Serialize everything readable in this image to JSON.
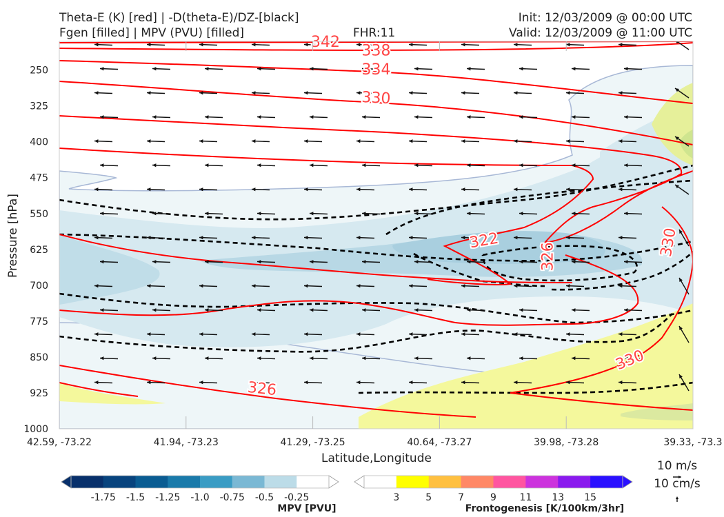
{
  "header": {
    "title_line1": "Theta-E (K) [red] | -D(theta-E)/DZ-[black]",
    "title_line2": "Fgen [filled] | MPV (PVU) [filled]",
    "fhr": "FHR:11",
    "init": "Init: 12/03/2009 @ 00:00 UTC",
    "valid": "Valid: 12/03/2009 @ 11:00 UTC"
  },
  "chart_data": {
    "type": "cross-section",
    "xlabel": "Latitude,Longitude",
    "ylabel": "Pressure [hPa]",
    "x_ticks": [
      "42.59, -73.22",
      "41.94, -73.23",
      "41.29, -73.25",
      "40.64, -73.27",
      "39.98, -73.28",
      "39.33, -73.3"
    ],
    "y_ticks": [
      250,
      325,
      400,
      475,
      550,
      625,
      700,
      775,
      850,
      925,
      1000
    ],
    "ylim": [
      1000,
      190
    ],
    "y_inverted": true,
    "grid": true,
    "theta_e_contour_labels": [
      {
        "value": "342",
        "pressure": 190,
        "position": 0.42
      },
      {
        "value": "338",
        "pressure": 208,
        "position": 0.5
      },
      {
        "value": "334",
        "pressure": 248,
        "position": 0.5
      },
      {
        "value": "330",
        "pressure": 307,
        "position": 0.5
      },
      {
        "value": "322",
        "pressure": 605,
        "position": 0.67
      },
      {
        "value": "326",
        "pressure": 640,
        "position": 0.77
      },
      {
        "value": "330",
        "pressure": 610,
        "position": 0.96
      },
      {
        "value": "330",
        "pressure": 855,
        "position": 0.9
      },
      {
        "value": "326",
        "pressure": 915,
        "position": 0.32
      }
    ],
    "wind_key": {
      "horizontal": "10 m/s",
      "vertical": "10 cm/s"
    },
    "colorbars": [
      {
        "title": "MPV [PVU]",
        "tick_labels": [
          "-1.75",
          "-1.5",
          "-1.25",
          "-1.0",
          "-0.75",
          "-0.5",
          "-0.25"
        ],
        "colors": [
          "#08306b",
          "#08447e",
          "#0a5c92",
          "#1a7aaa",
          "#3a9cc4",
          "#7ab8d4",
          "#bcdce8",
          "#ffffff"
        ]
      },
      {
        "title": "Frontogenesis [K/100km/3hr]",
        "tick_labels": [
          "3",
          "5",
          "7",
          "9",
          "11",
          "13",
          "15"
        ],
        "colors": [
          "#ffffff",
          "#ffff00",
          "#ffc040",
          "#ff8866",
          "#ff55a0",
          "#cc33dd",
          "#8a1aee",
          "#2a10ff"
        ]
      }
    ]
  },
  "colors": {
    "theta_e": "#ff0000",
    "theta_e_label": "#ff4444",
    "dthetae_dz": "#000000",
    "mpv_light": "#eef6f8",
    "mpv_mid": "#d4e8ef",
    "mpv_dark": "#b5d6e3",
    "fgen_yellow": "#f4f89c",
    "fgen_green": "#cfe58f"
  }
}
